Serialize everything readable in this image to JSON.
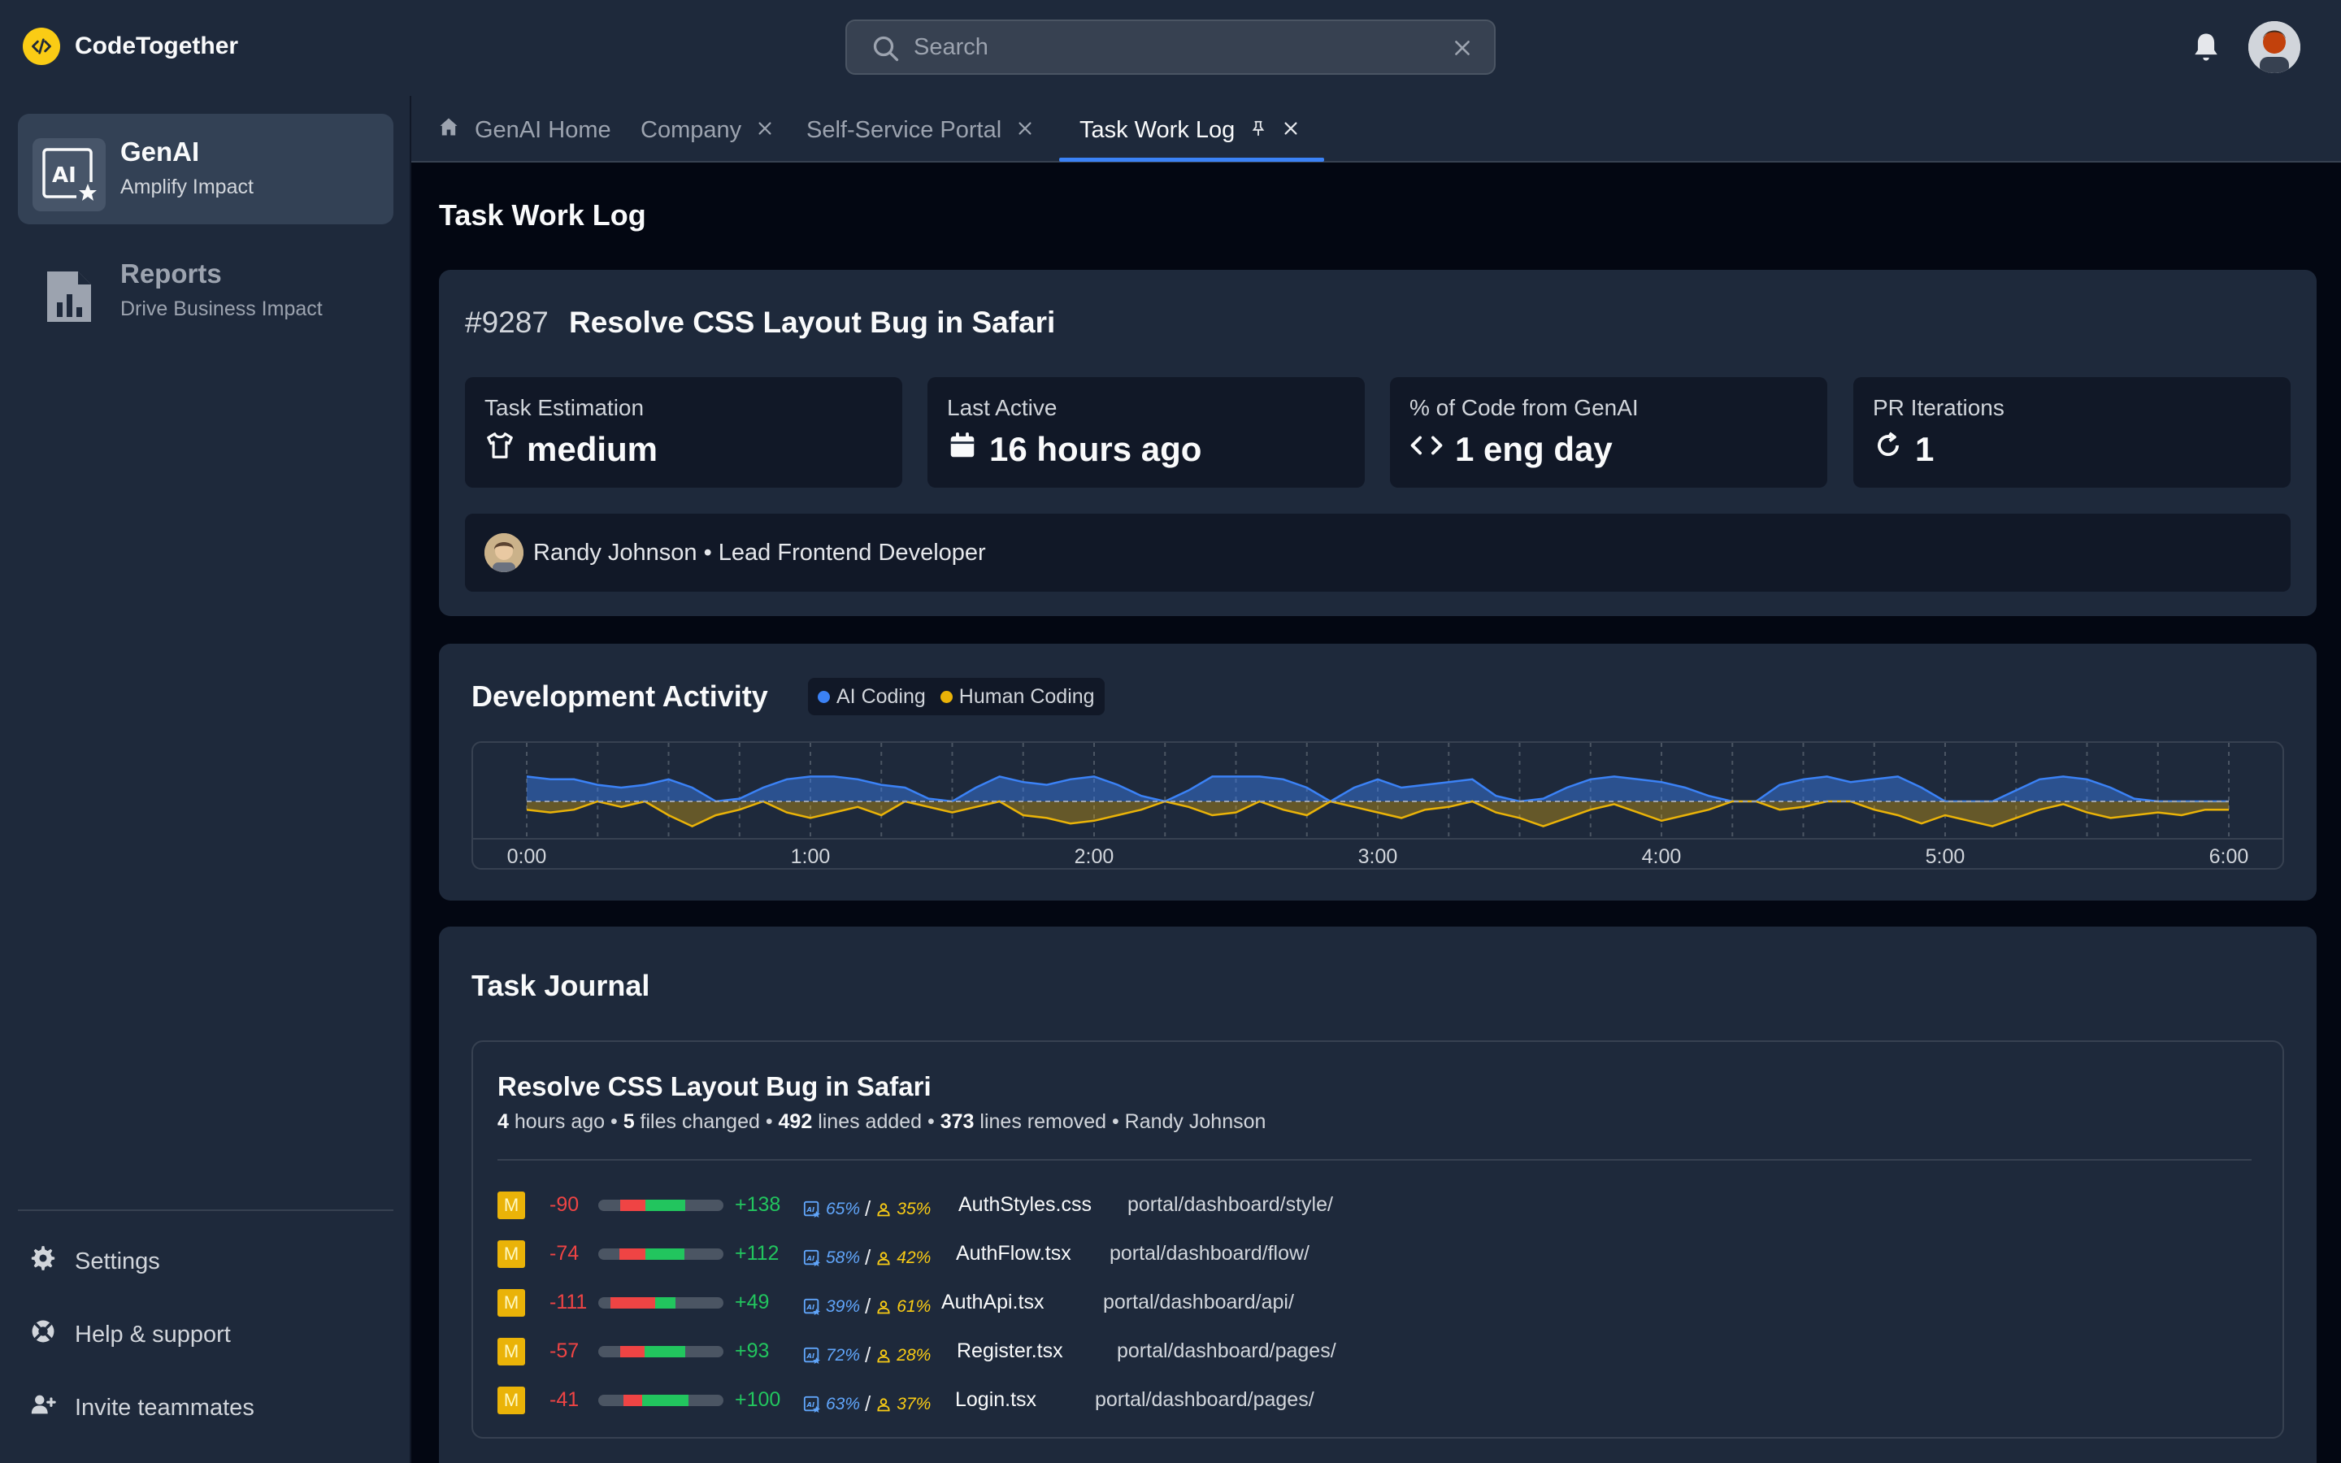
{
  "app": {
    "name": "CodeTogether"
  },
  "search": {
    "placeholder": "Search"
  },
  "sidebar": {
    "items": [
      {
        "title": "GenAI",
        "subtitle": "Amplify Impact"
      },
      {
        "title": "Reports",
        "subtitle": "Drive Business Impact"
      }
    ],
    "footer": [
      {
        "label": "Settings"
      },
      {
        "label": "Help & support"
      },
      {
        "label": "Invite teammates"
      }
    ]
  },
  "tabs": [
    {
      "label": "GenAI Home"
    },
    {
      "label": "Company"
    },
    {
      "label": "Self-Service Portal"
    },
    {
      "label": "Task Work Log"
    }
  ],
  "page": {
    "title": "Task Work Log"
  },
  "task": {
    "id": "#9287",
    "title": "Resolve CSS Layout Bug in Safari",
    "stats": [
      {
        "label": "Task Estimation",
        "value": "medium",
        "icon": "shirt-icon"
      },
      {
        "label": "Last Active",
        "value": "16 hours ago",
        "icon": "calendar-icon"
      },
      {
        "label": "% of Code from GenAI",
        "value": "1 eng day",
        "icon": "code-icon"
      },
      {
        "label": "PR Iterations",
        "value": "1",
        "icon": "refresh-icon"
      }
    ],
    "person": "Randy Johnson • Lead Frontend Developer"
  },
  "activity": {
    "title": "Development Activity",
    "legend": [
      {
        "label": "AI Coding",
        "color": "#3b82f6"
      },
      {
        "label": "Human Coding",
        "color": "#eab308"
      }
    ]
  },
  "chart_data": {
    "type": "area",
    "x_ticks": [
      "0:00",
      "1:00",
      "2:00",
      "3:00",
      "4:00",
      "5:00",
      "6:00"
    ],
    "x_range_minutes": [
      0,
      360
    ],
    "y_range": [
      -1,
      1
    ],
    "grid": "vertical dashed",
    "series": [
      {
        "name": "AI Coding",
        "color": "#3b82f6",
        "points": [
          [
            0,
            0.9
          ],
          [
            5,
            0.8
          ],
          [
            10,
            0.8
          ],
          [
            15,
            0.6
          ],
          [
            20,
            0.5
          ],
          [
            25,
            0.6
          ],
          [
            30,
            0.8
          ],
          [
            35,
            0.5
          ],
          [
            40,
            0.0
          ],
          [
            45,
            0.1
          ],
          [
            50,
            0.5
          ],
          [
            55,
            0.8
          ],
          [
            60,
            0.9
          ],
          [
            65,
            0.9
          ],
          [
            70,
            0.8
          ],
          [
            75,
            0.6
          ],
          [
            80,
            0.5
          ],
          [
            85,
            0.1
          ],
          [
            90,
            0.0
          ],
          [
            95,
            0.5
          ],
          [
            100,
            0.9
          ],
          [
            105,
            0.7
          ],
          [
            110,
            0.6
          ],
          [
            115,
            0.8
          ],
          [
            120,
            0.9
          ],
          [
            125,
            0.6
          ],
          [
            130,
            0.2
          ],
          [
            135,
            0.0
          ],
          [
            140,
            0.4
          ],
          [
            145,
            0.9
          ],
          [
            150,
            0.9
          ],
          [
            155,
            0.9
          ],
          [
            160,
            0.8
          ],
          [
            165,
            0.5
          ],
          [
            170,
            0.0
          ],
          [
            175,
            0.5
          ],
          [
            180,
            0.8
          ],
          [
            185,
            0.5
          ],
          [
            190,
            0.6
          ],
          [
            195,
            0.7
          ],
          [
            200,
            0.8
          ],
          [
            205,
            0.2
          ],
          [
            210,
            0.0
          ],
          [
            215,
            0.1
          ],
          [
            220,
            0.5
          ],
          [
            225,
            0.8
          ],
          [
            230,
            0.9
          ],
          [
            235,
            0.8
          ],
          [
            240,
            0.7
          ],
          [
            245,
            0.5
          ],
          [
            250,
            0.2
          ],
          [
            255,
            0.0
          ],
          [
            260,
            0.0
          ],
          [
            265,
            0.6
          ],
          [
            270,
            0.8
          ],
          [
            275,
            0.9
          ],
          [
            280,
            0.7
          ],
          [
            285,
            0.8
          ],
          [
            290,
            0.9
          ],
          [
            295,
            0.5
          ],
          [
            300,
            0.0
          ],
          [
            305,
            0.0
          ],
          [
            310,
            0.0
          ],
          [
            315,
            0.4
          ],
          [
            320,
            0.8
          ],
          [
            325,
            0.9
          ],
          [
            330,
            0.8
          ],
          [
            335,
            0.5
          ],
          [
            340,
            0.1
          ],
          [
            345,
            0.0
          ],
          [
            350,
            0.0
          ],
          [
            355,
            0.0
          ],
          [
            360,
            0.0
          ]
        ]
      },
      {
        "name": "Human Coding",
        "color": "#eab308",
        "points": [
          [
            0,
            -0.3
          ],
          [
            5,
            -0.4
          ],
          [
            10,
            -0.3
          ],
          [
            15,
            0.0
          ],
          [
            20,
            -0.2
          ],
          [
            25,
            0.0
          ],
          [
            30,
            -0.5
          ],
          [
            35,
            -0.9
          ],
          [
            40,
            -0.5
          ],
          [
            45,
            -0.3
          ],
          [
            50,
            0.0
          ],
          [
            55,
            -0.4
          ],
          [
            60,
            -0.6
          ],
          [
            65,
            -0.4
          ],
          [
            70,
            -0.2
          ],
          [
            75,
            -0.5
          ],
          [
            80,
            0.0
          ],
          [
            85,
            -0.2
          ],
          [
            90,
            -0.4
          ],
          [
            95,
            -0.2
          ],
          [
            100,
            0.0
          ],
          [
            105,
            -0.5
          ],
          [
            110,
            -0.6
          ],
          [
            115,
            -0.8
          ],
          [
            120,
            -0.7
          ],
          [
            125,
            -0.5
          ],
          [
            130,
            -0.3
          ],
          [
            135,
            0.0
          ],
          [
            140,
            -0.2
          ],
          [
            145,
            -0.5
          ],
          [
            150,
            -0.4
          ],
          [
            155,
            0.0
          ],
          [
            160,
            -0.3
          ],
          [
            165,
            -0.5
          ],
          [
            170,
            0.0
          ],
          [
            175,
            -0.2
          ],
          [
            180,
            -0.4
          ],
          [
            185,
            -0.6
          ],
          [
            190,
            -0.3
          ],
          [
            195,
            -0.2
          ],
          [
            200,
            0.0
          ],
          [
            205,
            -0.4
          ],
          [
            210,
            -0.6
          ],
          [
            215,
            -0.9
          ],
          [
            220,
            -0.6
          ],
          [
            225,
            -0.3
          ],
          [
            230,
            -0.1
          ],
          [
            235,
            -0.4
          ],
          [
            240,
            -0.7
          ],
          [
            245,
            -0.5
          ],
          [
            250,
            -0.3
          ],
          [
            255,
            0.0
          ],
          [
            260,
            0.0
          ],
          [
            265,
            -0.3
          ],
          [
            270,
            -0.2
          ],
          [
            275,
            0.0
          ],
          [
            280,
            0.0
          ],
          [
            285,
            -0.3
          ],
          [
            290,
            -0.5
          ],
          [
            295,
            -0.8
          ],
          [
            300,
            -0.5
          ],
          [
            305,
            -0.7
          ],
          [
            310,
            -0.9
          ],
          [
            315,
            -0.6
          ],
          [
            320,
            -0.3
          ],
          [
            325,
            -0.1
          ],
          [
            330,
            -0.4
          ],
          [
            335,
            -0.6
          ],
          [
            340,
            -0.5
          ],
          [
            345,
            -0.4
          ],
          [
            350,
            -0.5
          ],
          [
            355,
            -0.3
          ],
          [
            360,
            -0.3
          ]
        ]
      }
    ]
  },
  "journal": {
    "title": "Task Journal",
    "entry": {
      "title": "Resolve CSS Layout Bug in Safari",
      "time": "4",
      "time_suffix": " hours ago • ",
      "files": "5",
      "files_suffix": " files changed • ",
      "added": "492",
      "added_suffix": " lines added • ",
      "removed": "373",
      "removed_suffix": " lines removed • Randy Johnson",
      "rows": [
        {
          "badge": "M",
          "deleted": "-90",
          "added": "+138",
          "del_frac": 0.39,
          "ai": "65%",
          "human": "35%",
          "file": "AuthStyles.css",
          "path": "portal/dashboard/style/"
        },
        {
          "badge": "M",
          "deleted": "-74",
          "added": "+112",
          "del_frac": 0.4,
          "ai": "58%",
          "human": "42%",
          "file": "AuthFlow.tsx",
          "path": "portal/dashboard/flow/"
        },
        {
          "badge": "M",
          "deleted": "-111",
          "added": "+49",
          "del_frac": 0.69,
          "ai": "39%",
          "human": "61%",
          "file": "AuthApi.tsx",
          "path": "portal/dashboard/api/"
        },
        {
          "badge": "M",
          "deleted": "-57",
          "added": "+93",
          "del_frac": 0.38,
          "ai": "72%",
          "human": "28%",
          "file": "Register.tsx",
          "path": "portal/dashboard/pages/"
        },
        {
          "badge": "M",
          "deleted": "-41",
          "added": "+100",
          "del_frac": 0.29,
          "ai": "63%",
          "human": "37%",
          "file": "Login.tsx",
          "path": "portal/dashboard/pages/"
        }
      ]
    }
  }
}
